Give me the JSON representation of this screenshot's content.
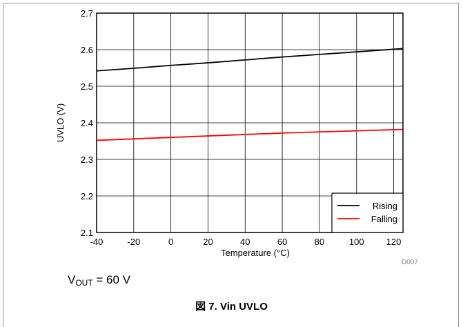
{
  "chart_data": {
    "type": "line",
    "xlabel": "Temperature (°C)",
    "ylabel": "UVLO (V)",
    "xlim": [
      -40,
      125
    ],
    "ylim": [
      2.1,
      2.7
    ],
    "x_ticks": [
      -40,
      -20,
      0,
      20,
      40,
      60,
      80,
      100,
      120
    ],
    "y_ticks": [
      2.1,
      2.2,
      2.3,
      2.4,
      2.5,
      2.6,
      2.7
    ],
    "grid": true,
    "legend_position": "bottom-right",
    "series": [
      {
        "name": "Rising",
        "color": "#000000",
        "x": [
          -40,
          -20,
          0,
          20,
          40,
          60,
          80,
          100,
          125
        ],
        "y": [
          2.542,
          2.549,
          2.557,
          2.564,
          2.572,
          2.58,
          2.587,
          2.594,
          2.603
        ]
      },
      {
        "name": "Falling",
        "color": "#ff0000",
        "x": [
          -40,
          -20,
          0,
          20,
          40,
          60,
          80,
          100,
          125
        ],
        "y": [
          2.352,
          2.356,
          2.36,
          2.364,
          2.368,
          2.372,
          2.375,
          2.378,
          2.382
        ]
      }
    ]
  },
  "condition": {
    "prefix": "V",
    "subscript": "OUT",
    "suffix": " = 60 V"
  },
  "figure_id": "D007",
  "caption": "図 7. Vin UVLO"
}
